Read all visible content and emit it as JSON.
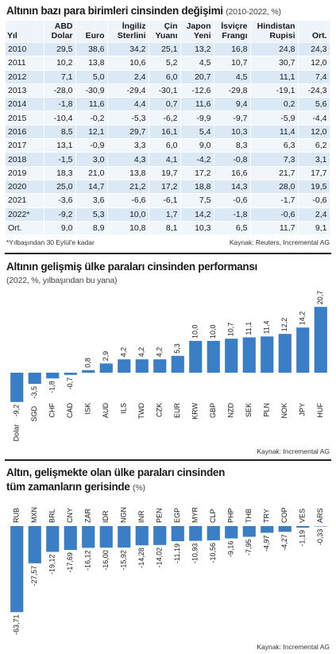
{
  "table": {
    "title": "Altının bazı para birimleri cinsinden değişimi",
    "subtitle": "(2010-2022, %)",
    "header": [
      [
        "Yıl"
      ],
      [
        "ABD",
        "Dolar"
      ],
      [
        "Euro"
      ],
      [
        "İngiliz",
        "Sterlini"
      ],
      [
        "Çin",
        "Yuanı"
      ],
      [
        "Japon",
        "Yeni"
      ],
      [
        "İsviçre",
        "Frangı"
      ],
      [
        "Hindistan",
        "Rupisi"
      ],
      [
        "Ort."
      ]
    ],
    "rows": [
      [
        "2010",
        "29,5",
        "38,6",
        "34,2",
        "25,1",
        "13,2",
        "16,8",
        "24,8",
        "24,3"
      ],
      [
        "2011",
        "10,2",
        "13,8",
        "10,6",
        "5,2",
        "4,5",
        "10,7",
        "30,7",
        "12,0"
      ],
      [
        "2012",
        "7,1",
        "5,0",
        "2,4",
        "6,0",
        "20,7",
        "4,5",
        "11,1",
        "7,4"
      ],
      [
        "2013",
        "-28,0",
        "-30,9",
        "-29,4",
        "-30,1",
        "-12,6",
        "-29,8",
        "-19,1",
        "-24,3"
      ],
      [
        "2014",
        "-1,8",
        "11,6",
        "4,4",
        "0,7",
        "11,6",
        "9,4",
        "0,2",
        "5,6"
      ],
      [
        "2015",
        "-10,4",
        "-0,2",
        "-5,3",
        "-6,2",
        "-9,9",
        "-9,7",
        "-5,9",
        "-4,4"
      ],
      [
        "2016",
        "8,5",
        "12,1",
        "29,7",
        "16,1",
        "5,4",
        "10,3",
        "11,4",
        "12,0"
      ],
      [
        "2017",
        "13,1",
        "-0,9",
        "3,3",
        "6,0",
        "9,0",
        "8,3",
        "6,3",
        "6,2"
      ],
      [
        "2018",
        "-1,5",
        "3,0",
        "4,3",
        "4,1",
        "-4,2",
        "-0,8",
        "7,3",
        "3,1"
      ],
      [
        "2019",
        "18,3",
        "21,0",
        "13,8",
        "19,7",
        "17,2",
        "16,6",
        "21,7",
        "17,7"
      ],
      [
        "2020",
        "25,0",
        "14,7",
        "21,2",
        "17,2",
        "18,8",
        "14,3",
        "28,0",
        "19,5"
      ],
      [
        "2021",
        "-3,6",
        "3,6",
        "-6,6",
        "-6,1",
        "7,5",
        "-0,6",
        "-1,7",
        "-0,6"
      ],
      [
        "2022*",
        "-9,2",
        "5,3",
        "10,0",
        "1,7",
        "14,2",
        "-1,8",
        "-0,6",
        "2,4"
      ],
      [
        "Ort.",
        "9,0",
        "8,9",
        "10,8",
        "8,1",
        "10,3",
        "6,5",
        "11,7",
        "9,1"
      ]
    ],
    "footnote": "*Yılbaşından 30 Eylül'e kadar",
    "source": "Kaynak: Reuters, Incremental AG"
  },
  "chart_data": [
    {
      "type": "bar",
      "title": "Altının gelişmiş ülke paraları cinsinden performansı",
      "subtitle": "(2022, %, yılbaşından bu yana)",
      "categories": [
        "Dolar",
        "SGD",
        "CHF",
        "CAD",
        "ISK",
        "AUD",
        "ILS",
        "TWD",
        "CZK",
        "EUR",
        "KRW",
        "GBP",
        "NZD",
        "SEK",
        "PLN",
        "NOK",
        "JPY",
        "HUF"
      ],
      "values": [
        -9.2,
        -3.5,
        -1.8,
        -0.7,
        0.8,
        2.9,
        4.2,
        4.2,
        4.2,
        5.3,
        10.0,
        10.0,
        10.7,
        11.1,
        11.4,
        12.2,
        14.2,
        20.7
      ],
      "value_labels": [
        "-9,2",
        "-3,5",
        "-1,8",
        "-0,7",
        "0,8",
        "2,9",
        "4,2",
        "4,2",
        "4,2",
        "5,3",
        "10,0",
        "10,0",
        "10,7",
        "11,1",
        "11,4",
        "12,2",
        "14,2",
        "20,7"
      ],
      "color": "#3a7ec6",
      "source": "Kaynak: Incremental AG"
    },
    {
      "type": "bar",
      "title": "Altın, gelişmekte olan ülke paraları cinsinden tüm zamanların gerisinde",
      "subtitle": "(%)",
      "categories": [
        "RUB",
        "MXN",
        "BRL",
        "CNY",
        "ZAR",
        "IDR",
        "NGN",
        "INR",
        "PEN",
        "EGP",
        "MYR",
        "CLP",
        "PHP",
        "THB",
        "TRY",
        "COP",
        "VES",
        "ARS"
      ],
      "values": [
        -63.71,
        -27.57,
        -19.12,
        -17.69,
        -16.12,
        -16.0,
        -15.92,
        -14.28,
        -14.02,
        -11.19,
        -10.93,
        -10.56,
        -9.16,
        -7.95,
        -4.97,
        -4.27,
        -1.19,
        -0.33
      ],
      "value_labels": [
        "-63,71",
        "-27,57",
        "-19,12",
        "-17,69",
        "-16,12",
        "-16,00",
        "-15,92",
        "-14,28",
        "-14,02",
        "-11,19",
        "-10,93",
        "-10,56",
        "-9,16",
        "-7,95",
        "-4,97",
        "-4,27",
        "-1,19",
        "-0,33"
      ],
      "color": "#3a7ec6",
      "source": "Kaynak: Incremental AG"
    }
  ]
}
